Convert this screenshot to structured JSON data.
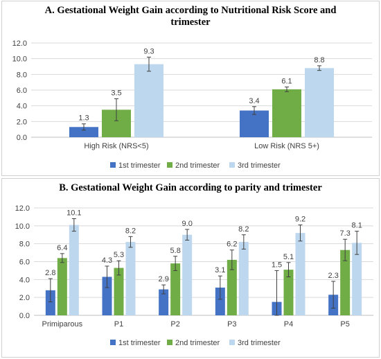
{
  "colors": {
    "s1": "#4472C4",
    "s2": "#70AD47",
    "s3": "#BDD7EE",
    "grid": "#d9d9d9",
    "axis": "#bfbfbf",
    "error": "#404040"
  },
  "chart_data": [
    {
      "type": "bar",
      "title_line1": "A. Gestational Weight Gain according to Nutritional Risk Score and",
      "title_line2": "trimester",
      "categories": [
        "High Risk (NRS<5)",
        "Low Risk (NRS 5+)"
      ],
      "series": [
        {
          "name": "1st trimester",
          "values": [
            1.3,
            3.4
          ],
          "labels": [
            "1.3",
            "3.4"
          ],
          "error": [
            0.4,
            0.5
          ]
        },
        {
          "name": "2nd trimester",
          "values": [
            3.5,
            6.1
          ],
          "labels": [
            "3.5",
            "6.1"
          ],
          "error": [
            1.4,
            0.3
          ]
        },
        {
          "name": "3rd trimester",
          "values": [
            9.3,
            8.8
          ],
          "labels": [
            "9.3",
            "8.8"
          ],
          "error": [
            0.9,
            0.3
          ]
        }
      ],
      "ylim": [
        0,
        12
      ],
      "yticks": [
        "0.0",
        "2.0",
        "4.0",
        "6.0",
        "8.0",
        "10.0",
        "12.0"
      ],
      "grid": true,
      "legend": "bottom"
    },
    {
      "type": "bar",
      "title": "B. Gestational Weight Gain according to parity and trimester",
      "categories": [
        "Primiparous",
        "P1",
        "P2",
        "P3",
        "P4",
        "P5"
      ],
      "series": [
        {
          "name": "1st trimester",
          "values": [
            2.8,
            4.3,
            2.9,
            3.1,
            1.5,
            2.3
          ],
          "labels": [
            "2.8",
            "4.3",
            "2.9",
            "3.1",
            "1.5",
            "2.3"
          ],
          "error": [
            1.3,
            1.2,
            0.5,
            1.3,
            3.5,
            1.5
          ]
        },
        {
          "name": "2nd trimester",
          "values": [
            6.4,
            5.3,
            5.8,
            6.2,
            5.1,
            7.3
          ],
          "labels": [
            "6.4",
            "5.3",
            "5.8",
            "6.2",
            "5.1",
            "7.3"
          ],
          "error": [
            0.5,
            0.8,
            0.8,
            1.1,
            0.8,
            1.2
          ]
        },
        {
          "name": "3rd trimester",
          "values": [
            10.1,
            8.2,
            9.0,
            8.2,
            9.2,
            8.1
          ],
          "labels": [
            "10.1",
            "8.2",
            "9.0",
            "8.2",
            "9.2",
            "8.1"
          ],
          "error": [
            0.7,
            0.6,
            0.6,
            0.8,
            0.9,
            1.3
          ]
        }
      ],
      "ylim": [
        0,
        12
      ],
      "yticks": [
        "0.0",
        "2.0",
        "4.0",
        "6.0",
        "8.0",
        "10.0",
        "12.0"
      ],
      "grid": true,
      "legend": "bottom"
    }
  ]
}
